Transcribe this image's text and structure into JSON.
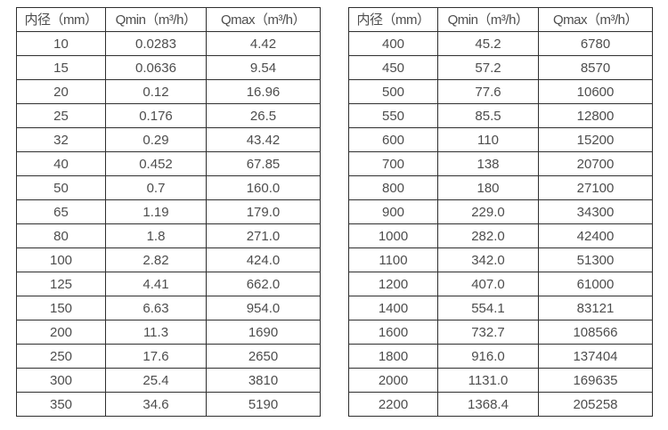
{
  "colors": {
    "background": "#ffffff",
    "border": "#2f2f2f",
    "text": "#4d4d4d"
  },
  "left_table": {
    "headers": [
      "内径（mm）",
      "Qmin（m³/h）",
      "Qmax（m³/h）"
    ],
    "rows": [
      [
        "10",
        "0.0283",
        "4.42"
      ],
      [
        "15",
        "0.0636",
        "9.54"
      ],
      [
        "20",
        "0.12",
        "16.96"
      ],
      [
        "25",
        "0.176",
        "26.5"
      ],
      [
        "32",
        "0.29",
        "43.42"
      ],
      [
        "40",
        "0.452",
        "67.85"
      ],
      [
        "50",
        "0.7",
        "160.0"
      ],
      [
        "65",
        "1.19",
        "179.0"
      ],
      [
        "80",
        "1.8",
        "271.0"
      ],
      [
        "100",
        "2.82",
        "424.0"
      ],
      [
        "125",
        "4.41",
        "662.0"
      ],
      [
        "150",
        "6.63",
        "954.0"
      ],
      [
        "200",
        "11.3",
        "1690"
      ],
      [
        "250",
        "17.6",
        "2650"
      ],
      [
        "300",
        "25.4",
        "3810"
      ],
      [
        "350",
        "34.6",
        "5190"
      ]
    ]
  },
  "right_table": {
    "headers": [
      "内径（mm）",
      "Qmin（m³/h）",
      "Qmax（m³/h）"
    ],
    "rows": [
      [
        "400",
        "45.2",
        "6780"
      ],
      [
        "450",
        "57.2",
        "8570"
      ],
      [
        "500",
        "77.6",
        "10600"
      ],
      [
        "550",
        "85.5",
        "12800"
      ],
      [
        "600",
        "110",
        "15200"
      ],
      [
        "700",
        "138",
        "20700"
      ],
      [
        "800",
        "180",
        "27100"
      ],
      [
        "900",
        "229.0",
        "34300"
      ],
      [
        "1000",
        "282.0",
        "42400"
      ],
      [
        "1100",
        "342.0",
        "51300"
      ],
      [
        "1200",
        "407.0",
        "61000"
      ],
      [
        "1400",
        "554.1",
        "83121"
      ],
      [
        "1600",
        "732.7",
        "108566"
      ],
      [
        "1800",
        "916.0",
        "137404"
      ],
      [
        "2000",
        "1131.0",
        "169635"
      ],
      [
        "2200",
        "1368.4",
        "205258"
      ]
    ]
  }
}
